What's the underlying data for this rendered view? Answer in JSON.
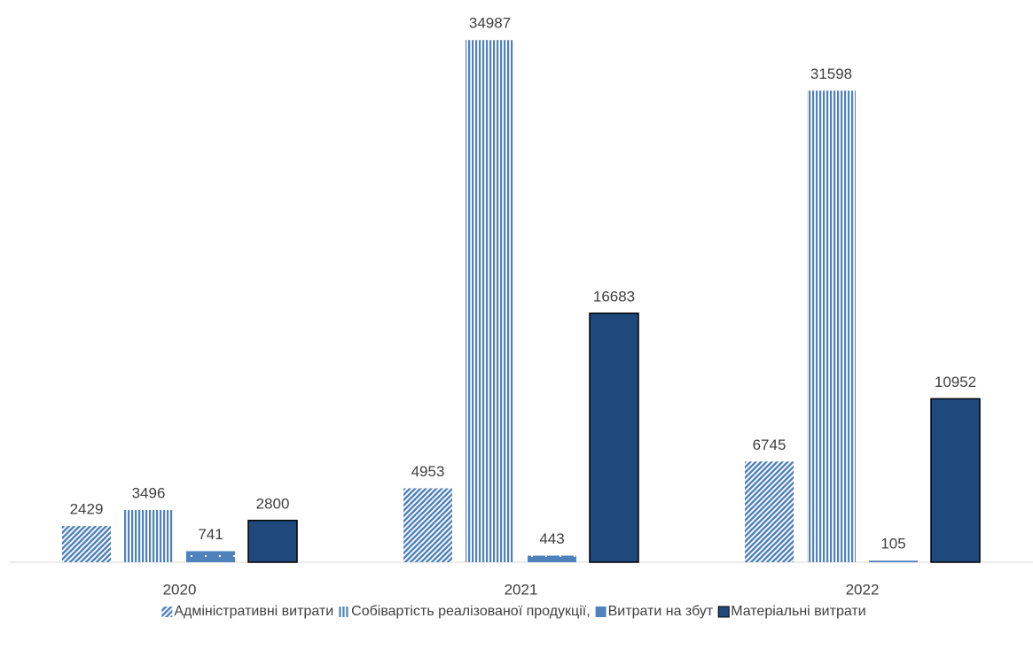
{
  "chart_data": {
    "type": "bar",
    "categories": [
      "2020",
      "2021",
      "2022"
    ],
    "series": [
      {
        "name": "Адміністративні витрати",
        "color": "#4f81bd",
        "pattern": "diagonal",
        "values": [
          2429,
          4953,
          6745
        ]
      },
      {
        "name": "Собівартість реалізованої продукції,",
        "color": "#4f81bd",
        "pattern": "vertical",
        "values": [
          3496,
          34987,
          31598
        ]
      },
      {
        "name": "Витрати на збут",
        "color": "#4f81bd",
        "pattern": "dotted",
        "values": [
          741,
          443,
          105
        ]
      },
      {
        "name": "Матеріальні витрати",
        "color": "#1f497d",
        "pattern": "solid",
        "values": [
          2800,
          16683,
          10952
        ]
      }
    ],
    "ylim": [
      0,
      35000
    ],
    "legend": "bottom"
  }
}
